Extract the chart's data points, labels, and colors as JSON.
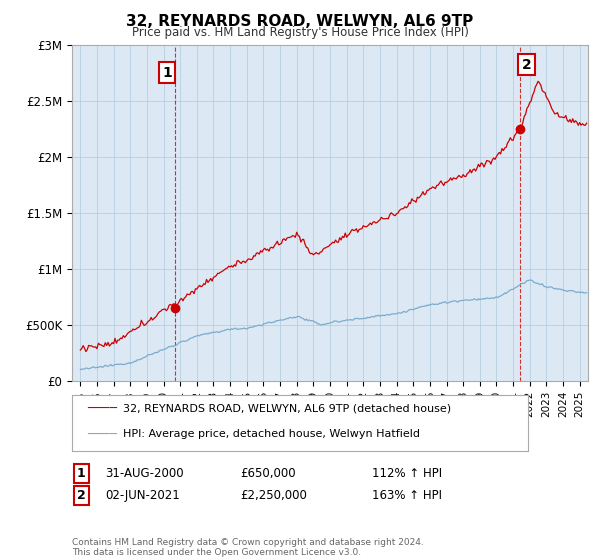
{
  "title": "32, REYNARDS ROAD, WELWYN, AL6 9TP",
  "subtitle": "Price paid vs. HM Land Registry's House Price Index (HPI)",
  "legend_line1": "32, REYNARDS ROAD, WELWYN, AL6 9TP (detached house)",
  "legend_line2": "HPI: Average price, detached house, Welwyn Hatfield",
  "annotation1_label": "1",
  "annotation1_date": "31-AUG-2000",
  "annotation1_price": "£650,000",
  "annotation1_hpi": "112% ↑ HPI",
  "annotation2_label": "2",
  "annotation2_date": "02-JUN-2021",
  "annotation2_price": "£2,250,000",
  "annotation2_hpi": "163% ↑ HPI",
  "footnote": "Contains HM Land Registry data © Crown copyright and database right 2024.\nThis data is licensed under the Open Government Licence v3.0.",
  "house_color": "#cc0000",
  "hpi_color": "#7aadcc",
  "annotation_color": "#cc0000",
  "plot_bg_color": "#dce9f5",
  "background_color": "#ffffff",
  "ylim": [
    0,
    3000000
  ],
  "yticks": [
    0,
    500000,
    1000000,
    1500000,
    2000000,
    2500000,
    3000000
  ],
  "ytick_labels": [
    "£0",
    "£500K",
    "£1M",
    "£1.5M",
    "£2M",
    "£2.5M",
    "£3M"
  ],
  "sale1_x": 2000.67,
  "sale1_y": 650000,
  "sale2_x": 2021.42,
  "sale2_y": 2250000,
  "xmin": 1994.5,
  "xmax": 2025.5
}
